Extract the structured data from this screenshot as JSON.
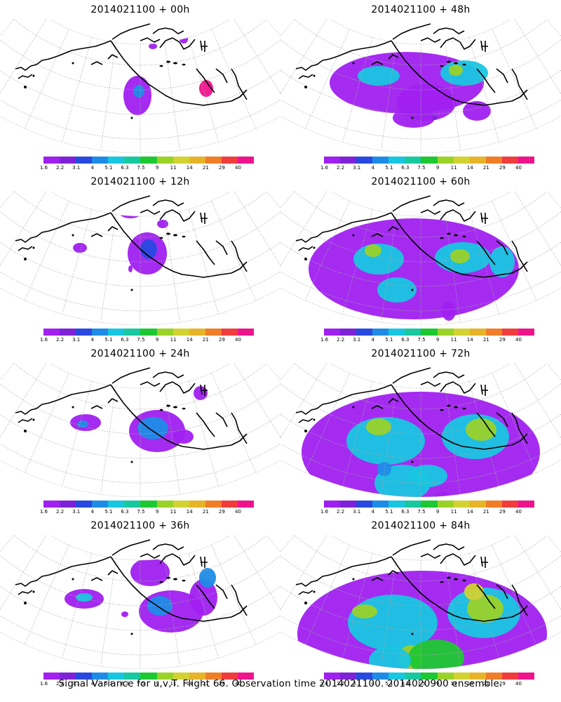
{
  "panels": [
    {
      "title": "2014021100 + 00h",
      "level": 1
    },
    {
      "title": "2014021100 + 48h",
      "level": 5
    },
    {
      "title": "2014021100 + 12h",
      "level": 2
    },
    {
      "title": "2014021100 + 60h",
      "level": 6
    },
    {
      "title": "2014021100 + 24h",
      "level": 3
    },
    {
      "title": "2014021100 + 72h",
      "level": 7
    },
    {
      "title": "2014021100 + 36h",
      "level": 4
    },
    {
      "title": "2014021100 + 84h",
      "level": 8
    }
  ],
  "colorbar": {
    "colors": [
      "#a020f0",
      "#7e22d8",
      "#2849e0",
      "#1e8ce6",
      "#18c6e0",
      "#18c8a0",
      "#1ec832",
      "#9ad228",
      "#d2d232",
      "#e6b428",
      "#f07d28",
      "#f03c3c",
      "#f0148c"
    ],
    "labels": [
      "1.6",
      "2.2",
      "3.1",
      "4",
      "5.1",
      "6.3",
      "7.5",
      "9",
      "11",
      "14",
      "21",
      "29",
      "40"
    ]
  },
  "footer": "Signal Variance for u,v,T. Flight 66. Observation time 2014021100. 2014020900 ensemble."
}
